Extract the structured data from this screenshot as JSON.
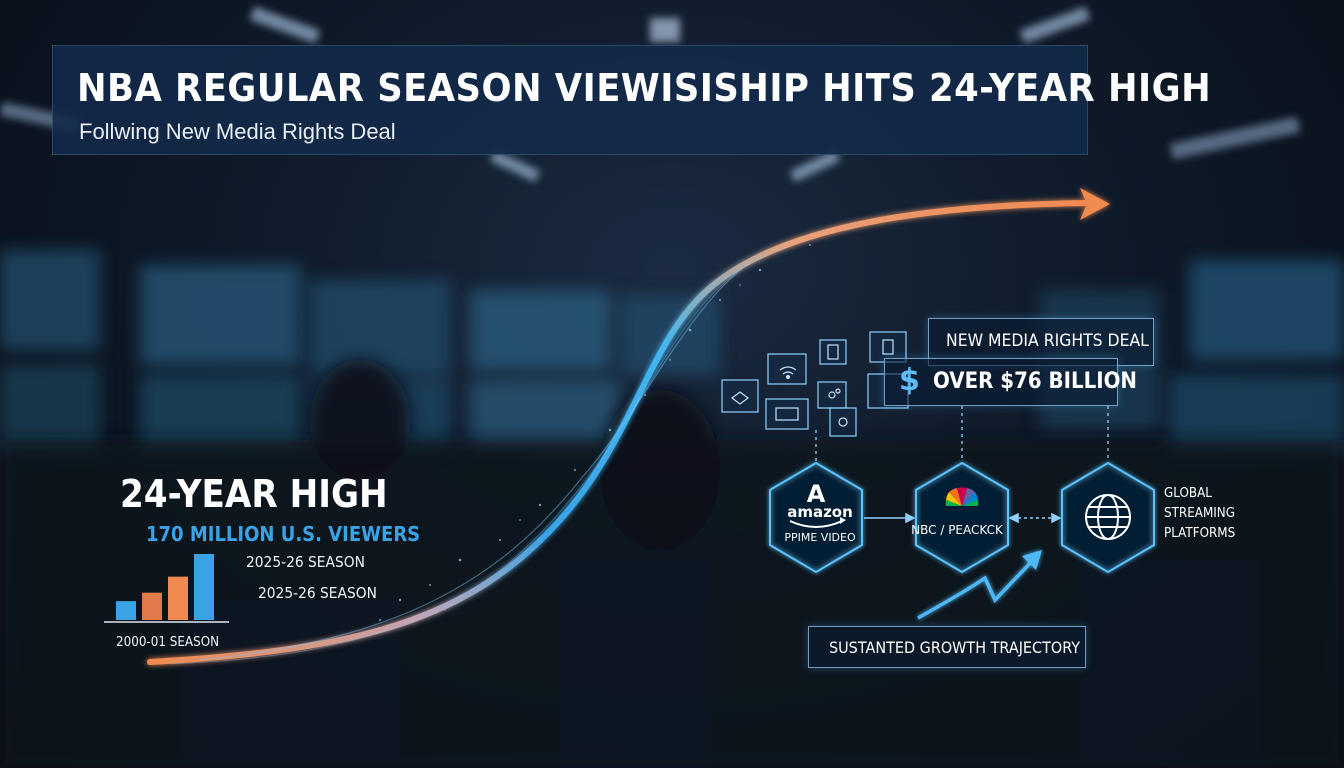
{
  "headline": {
    "title": "NBA REGULAR SEASON VIEWISISHIP HITS 24-YEAR HIGH",
    "subtitle": "Follwing New Media Rights Deal"
  },
  "stats": {
    "high_label": "24-YEAR HIGH",
    "viewers": "170 MILLION U.S. VIEWERS",
    "season_current": "2025-26 SEASON",
    "season_repeat": "2025-26 SEASON",
    "season_baseline": "2000-01 SEASON",
    "mini_bars": [
      {
        "value": 1,
        "color": "#3aa3e6"
      },
      {
        "value": 1.45,
        "color": "#e07a4a"
      },
      {
        "value": 2.3,
        "color": "#f08a50"
      },
      {
        "value": 3.5,
        "color": "#3aa3e6"
      }
    ]
  },
  "deal": {
    "title": "NEW MEDIA RIGHTS DEAL",
    "currency_symbol": "$",
    "amount": "OVER $76 BILLION"
  },
  "partners": [
    {
      "name": "amazon",
      "logo_letter": "A",
      "subtitle": "PPIME VIDEO",
      "icon": "amazon-logo"
    },
    {
      "name": "NBC / PEACKCK",
      "icon": "peacock-logo"
    },
    {
      "name": "GLOBAL STREAMING PLATFORMS",
      "icon": "globe-icon",
      "lines": [
        "GLOBAL",
        "STREAMING",
        "PLATFORMS"
      ]
    }
  ],
  "growth": {
    "label": "SUSTANTED GROWTH TRAJECTORY"
  },
  "colors": {
    "accent_blue": "#3aa3e6",
    "accent_orange": "#f08a50",
    "title_panel": "#122a4a"
  }
}
